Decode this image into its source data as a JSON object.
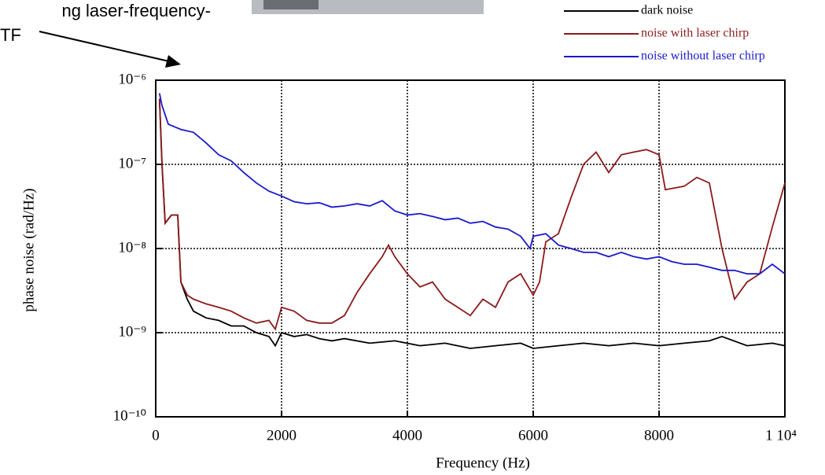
{
  "chart_data": {
    "type": "line",
    "annotations": [
      "ng laser-frequency-",
      "TF"
    ],
    "x_label": "Frequency (Hz)",
    "y_label": "phase noise (rad/Hz)",
    "log_y": true,
    "grid": true,
    "legend": "top-right",
    "xlim": [
      0,
      10000
    ],
    "xticks": [
      0,
      2000,
      4000,
      6000,
      8000,
      {
        "value": 10000,
        "label": "1 10⁴"
      }
    ],
    "ylim": [
      1e-10,
      1e-06
    ],
    "yticks": [
      {
        "value": 1e-10,
        "label": "10⁻¹⁰"
      },
      {
        "value": 1e-09,
        "label": "10⁻⁹"
      },
      {
        "value": 1e-08,
        "label": "10⁻⁸"
      },
      {
        "value": 1e-07,
        "label": "10⁻⁷"
      },
      {
        "value": 1e-06,
        "label": "10⁻⁶"
      }
    ],
    "series": [
      {
        "name": "dark noise",
        "color": "#000000",
        "x": [
          60,
          100,
          150,
          250,
          350,
          400,
          500,
          600,
          800,
          1000,
          1200,
          1400,
          1600,
          1800,
          1900,
          2000,
          2200,
          2400,
          2600,
          2800,
          3000,
          3400,
          3800,
          4200,
          4600,
          5000,
          5400,
          5800,
          6000,
          6400,
          6800,
          7200,
          7600,
          8000,
          8400,
          8800,
          9000,
          9400,
          9800,
          10000
        ],
        "values": [
          6e-07,
          1e-07,
          2e-08,
          2.5e-08,
          2.5e-08,
          4e-09,
          2.5e-09,
          1.8e-09,
          1.5e-09,
          1.4e-09,
          1.2e-09,
          1.2e-09,
          1e-09,
          9e-10,
          7e-10,
          1e-09,
          9e-10,
          9.5e-10,
          8.5e-10,
          8e-10,
          8.5e-10,
          7.5e-10,
          8e-10,
          7e-10,
          7.5e-10,
          6.5e-10,
          7e-10,
          7.5e-10,
          6.5e-10,
          7e-10,
          7.5e-10,
          7e-10,
          7.5e-10,
          7e-10,
          7.5e-10,
          8e-10,
          9e-10,
          7e-10,
          7.5e-10,
          7e-10
        ]
      },
      {
        "name": "noise with laser chirp",
        "color": "#8b1a1a",
        "x": [
          60,
          100,
          150,
          250,
          350,
          400,
          500,
          600,
          800,
          1000,
          1200,
          1400,
          1600,
          1800,
          1900,
          2000,
          2200,
          2400,
          2600,
          2800,
          3000,
          3200,
          3400,
          3600,
          3700,
          3800,
          4000,
          4200,
          4400,
          4600,
          4800,
          5000,
          5200,
          5400,
          5600,
          5800,
          6000,
          6100,
          6200,
          6400,
          6600,
          6800,
          7000,
          7200,
          7400,
          7600,
          7800,
          8000,
          8100,
          8400,
          8600,
          8800,
          9000,
          9200,
          9400,
          9600,
          9800,
          10000
        ],
        "values": [
          6e-07,
          1e-07,
          2e-08,
          2.5e-08,
          2.5e-08,
          4e-09,
          2.8e-09,
          2.5e-09,
          2.2e-09,
          2e-09,
          1.8e-09,
          1.5e-09,
          1.3e-09,
          1.4e-09,
          1.1e-09,
          2e-09,
          1.8e-09,
          1.4e-09,
          1.3e-09,
          1.3e-09,
          1.6e-09,
          3e-09,
          5e-09,
          8e-09,
          1.1e-08,
          8e-09,
          5e-09,
          3.5e-09,
          4e-09,
          2.5e-09,
          2e-09,
          1.6e-09,
          2.5e-09,
          2e-09,
          4e-09,
          5e-09,
          2.8e-09,
          4e-09,
          1.2e-08,
          1.5e-08,
          4e-08,
          1e-07,
          1.4e-07,
          8e-08,
          1.3e-07,
          1.4e-07,
          1.5e-07,
          1.3e-07,
          5e-08,
          5.5e-08,
          7e-08,
          6e-08,
          1e-08,
          2.5e-09,
          4e-09,
          5e-09,
          1.8e-08,
          6e-08
        ]
      },
      {
        "name": "noise without laser chirp",
        "color": "#1a1acc",
        "x": [
          60,
          100,
          200,
          400,
          600,
          800,
          1000,
          1200,
          1400,
          1600,
          1800,
          2000,
          2200,
          2400,
          2600,
          2800,
          3000,
          3200,
          3400,
          3600,
          3800,
          4000,
          4200,
          4400,
          4600,
          4800,
          5000,
          5200,
          5400,
          5600,
          5800,
          5950,
          6000,
          6200,
          6400,
          6600,
          6800,
          7000,
          7200,
          7400,
          7600,
          7800,
          8000,
          8200,
          8400,
          8600,
          8800,
          9000,
          9200,
          9400,
          9600,
          9800,
          10000
        ],
        "values": [
          7e-07,
          5e-07,
          3e-07,
          2.6e-07,
          2.4e-07,
          1.8e-07,
          1.3e-07,
          1.1e-07,
          8e-08,
          6e-08,
          4.8e-08,
          4.2e-08,
          3.6e-08,
          3.4e-08,
          3.5e-08,
          3.1e-08,
          3.2e-08,
          3.4e-08,
          3.2e-08,
          3.7e-08,
          2.8e-08,
          2.5e-08,
          2.6e-08,
          2.4e-08,
          2.2e-08,
          2.3e-08,
          2e-08,
          2.1e-08,
          1.8e-08,
          1.7e-08,
          1.4e-08,
          1e-08,
          1.4e-08,
          1.5e-08,
          1.1e-08,
          1e-08,
          9e-09,
          9e-09,
          8e-09,
          9e-09,
          8e-09,
          7.5e-09,
          8e-09,
          7e-09,
          6.5e-09,
          6.5e-09,
          6e-09,
          5.5e-09,
          5.5e-09,
          5e-09,
          5e-09,
          6.5e-09,
          5e-09
        ]
      }
    ]
  }
}
